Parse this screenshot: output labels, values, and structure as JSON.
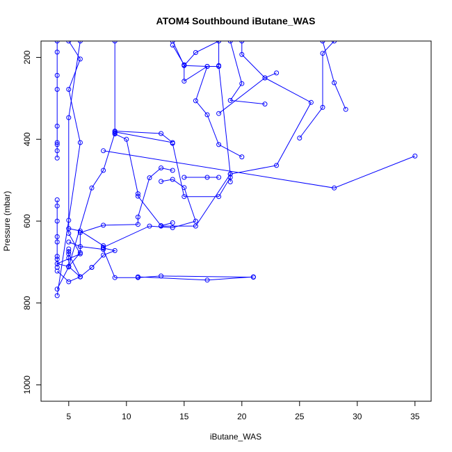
{
  "chart_data": {
    "type": "line",
    "title": "ATOM4 Southbound iButane_WAS",
    "xlabel": "iButane_WAS",
    "ylabel": "Pressure (mbar)",
    "xlim": [
      2.6,
      36.4
    ],
    "ylim": [
      1040,
      160
    ],
    "y_reversed": true,
    "xticks": [
      5,
      10,
      15,
      20,
      25,
      30,
      35
    ],
    "yticks": [
      200,
      400,
      600,
      800,
      1000
    ],
    "color": "#0000ff",
    "marker": "open-circle",
    "grid": false,
    "series": [
      {
        "x": [
          4,
          4,
          4,
          4,
          4,
          4,
          4,
          4,
          4
        ],
        "y": [
          160,
          187,
          244,
          278,
          368,
          408,
          413,
          428,
          446
        ]
      },
      {
        "x": [
          5,
          6,
          5,
          6,
          5,
          4
        ],
        "y": [
          160,
          204,
          278,
          408,
          598,
          782
        ]
      },
      {
        "x": [
          6,
          5,
          5,
          6,
          4,
          5,
          6
        ],
        "y": [
          160,
          347,
          630,
          680,
          704,
          711,
          736
        ]
      },
      {
        "x": [
          4,
          4,
          4,
          4,
          4,
          4,
          4,
          4
        ],
        "y": [
          548,
          563,
          600,
          638,
          651,
          686,
          693,
          713
        ]
      },
      {
        "x": [
          9,
          9,
          10,
          11,
          11,
          13,
          14
        ],
        "y": [
          160,
          387,
          400,
          533,
          539,
          611,
          604
        ]
      },
      {
        "x": [
          14,
          15,
          16,
          18,
          18,
          19,
          19
        ],
        "y": [
          160,
          220,
          188,
          160,
          220,
          485,
          504
        ]
      },
      {
        "x": [
          14,
          15,
          15,
          17,
          16,
          17,
          18,
          20
        ],
        "y": [
          170,
          218,
          258,
          222,
          306,
          340,
          413,
          443
        ]
      },
      {
        "x": [
          20,
          20,
          22,
          23
        ],
        "y": [
          160,
          193,
          250,
          238
        ]
      },
      {
        "x": [
          27,
          28,
          29
        ],
        "y": [
          160,
          262,
          327
        ]
      },
      {
        "x": [
          28,
          27,
          27,
          25
        ],
        "y": [
          160,
          190,
          322,
          397
        ]
      },
      {
        "x": [
          19,
          20,
          19,
          22
        ],
        "y": [
          160,
          264,
          305,
          314
        ]
      },
      {
        "x": [
          15,
          17,
          18
        ],
        "y": [
          220,
          222,
          222
        ]
      },
      {
        "x": [
          18,
          22,
          26,
          23,
          19,
          16,
          13
        ],
        "y": [
          337,
          250,
          310,
          464,
          485,
          612,
          612
        ]
      },
      {
        "x": [
          9,
          13,
          14,
          9,
          9,
          8,
          7,
          5
        ],
        "y": [
          380,
          386,
          408,
          382,
          385,
          476,
          519,
          711
        ]
      },
      {
        "x": [
          14,
          15,
          18,
          19
        ],
        "y": [
          410,
          540,
          540,
          493
        ]
      },
      {
        "x": [
          14,
          13,
          12,
          11,
          11,
          8,
          6,
          6,
          5
        ],
        "y": [
          476,
          470,
          494,
          590,
          608,
          610,
          628,
          677,
          711
        ]
      },
      {
        "x": [
          15,
          17,
          18
        ],
        "y": [
          493,
          493,
          493
        ]
      },
      {
        "x": [
          8,
          28,
          35
        ],
        "y": [
          428,
          519,
          441
        ]
      },
      {
        "x": [
          13,
          14,
          15,
          16,
          14,
          12,
          8
        ],
        "y": [
          503,
          498,
          518,
          600,
          616,
          612,
          664
        ]
      },
      {
        "x": [
          5,
          6,
          8,
          8,
          9,
          8,
          7
        ],
        "y": [
          618,
          624,
          660,
          666,
          672,
          683,
          713
        ]
      },
      {
        "x": [
          5,
          6,
          8,
          9,
          11,
          13,
          21
        ],
        "y": [
          651,
          662,
          669,
          738,
          738,
          734,
          737
        ]
      },
      {
        "x": [
          5,
          5,
          6,
          6
        ],
        "y": [
          674,
          680,
          736,
          736
        ]
      },
      {
        "x": [
          4,
          5,
          6,
          7
        ],
        "y": [
          722,
          748,
          736,
          713
        ]
      },
      {
        "x": [
          11,
          17,
          21
        ],
        "y": [
          736,
          744,
          736
        ]
      },
      {
        "x": [
          4,
          5,
          5,
          5
        ],
        "y": [
          766,
          712,
          690,
          668
        ]
      }
    ]
  }
}
